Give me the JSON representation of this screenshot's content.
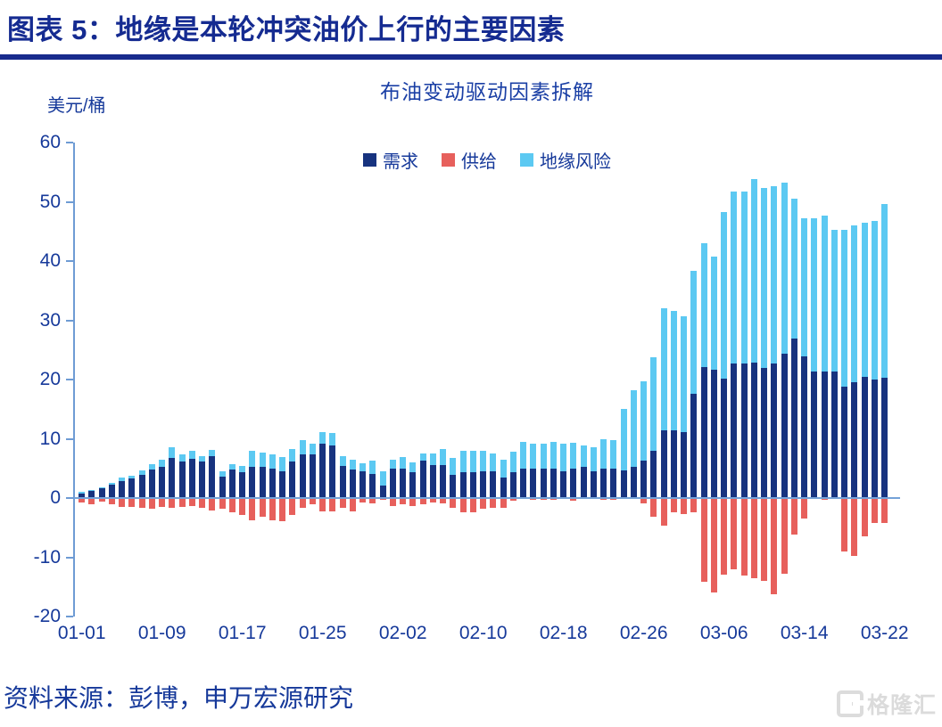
{
  "header": {
    "title": "图表 5：地缘是本轮冲突油价上行的主要因素"
  },
  "footer": {
    "source": "资料来源：彭博，申万宏源研究",
    "logo_text": "格隆汇"
  },
  "colors": {
    "title_text": "#152B91",
    "rule": "#182B8D",
    "axis_text": "#16399A",
    "axis_line": "#6E9BD4",
    "demand": "#17337F",
    "supply": "#E7605C",
    "geo": "#5CC9F2"
  },
  "chart_data": {
    "type": "bar",
    "stacked": true,
    "title": "布油变动驱动因素拆解",
    "ylabel": "美元/桶",
    "xlabel": "",
    "ylim": [
      -20,
      60
    ],
    "ytick_interval": 10,
    "ytick_labels": [
      "60",
      "50",
      "40",
      "30",
      "20",
      "10",
      "0",
      "-10",
      "-20"
    ],
    "grid": false,
    "legend_position": "top-center",
    "x_tick_labels": [
      "01-01",
      "01-09",
      "01-17",
      "01-25",
      "02-02",
      "02-10",
      "02-18",
      "02-26",
      "03-06",
      "03-14",
      "03-22"
    ],
    "x_tick_indices": [
      0,
      8,
      16,
      24,
      32,
      40,
      48,
      56,
      64,
      72,
      80
    ],
    "dates": [
      "01-01",
      "01-02",
      "01-03",
      "01-04",
      "01-05",
      "01-06",
      "01-07",
      "01-08",
      "01-09",
      "01-10",
      "01-11",
      "01-12",
      "01-13",
      "01-14",
      "01-15",
      "01-16",
      "01-17",
      "01-18",
      "01-19",
      "01-20",
      "01-21",
      "01-22",
      "01-23",
      "01-24",
      "01-25",
      "01-26",
      "01-27",
      "01-28",
      "01-29",
      "01-30",
      "01-31",
      "02-01",
      "02-02",
      "02-03",
      "02-04",
      "02-05",
      "02-06",
      "02-07",
      "02-08",
      "02-09",
      "02-10",
      "02-11",
      "02-12",
      "02-13",
      "02-14",
      "02-15",
      "02-16",
      "02-17",
      "02-18",
      "02-19",
      "02-20",
      "02-21",
      "02-22",
      "02-23",
      "02-24",
      "02-25",
      "02-26",
      "02-27",
      "02-28",
      "03-01",
      "03-02",
      "03-03",
      "03-04",
      "03-05",
      "03-06",
      "03-07",
      "03-08",
      "03-09",
      "03-10",
      "03-11",
      "03-12",
      "03-13",
      "03-14",
      "03-15",
      "03-16",
      "03-17",
      "03-18",
      "03-19",
      "03-20",
      "03-21",
      "03-22"
    ],
    "series": [
      {
        "name": "需求",
        "color": "#17337F",
        "values": [
          0.8,
          1.2,
          1.6,
          2.2,
          2.9,
          3.3,
          3.9,
          4.8,
          5.3,
          6.8,
          6.2,
          6.6,
          6.1,
          7.0,
          3.6,
          4.8,
          4.4,
          5.2,
          5.2,
          4.9,
          4.5,
          6.2,
          7.3,
          7.4,
          9.2,
          8.9,
          5.4,
          4.8,
          4.5,
          4.0,
          2.1,
          4.9,
          4.9,
          4.4,
          6.3,
          5.5,
          5.5,
          3.9,
          4.3,
          4.3,
          4.5,
          4.5,
          3.4,
          4.4,
          4.9,
          4.9,
          5.0,
          5.0,
          4.5,
          4.9,
          5.3,
          4.5,
          4.9,
          5.0,
          4.7,
          5.2,
          6.3,
          7.9,
          11.5,
          11.5,
          11.2,
          17.6,
          22.1,
          21.6,
          20.2,
          22.7,
          22.7,
          22.8,
          21.9,
          22.7,
          24.4,
          26.9,
          23.9,
          21.3,
          21.4,
          21.3,
          18.8,
          19.5,
          20.4,
          20.0,
          20.3
        ]
      },
      {
        "name": "供给",
        "color": "#E7605C",
        "values": [
          -0.7,
          -1.0,
          -0.6,
          -1.1,
          -1.5,
          -1.5,
          -1.6,
          -1.8,
          -1.5,
          -1.7,
          -1.5,
          -1.3,
          -1.7,
          -2.1,
          -1.8,
          -2.4,
          -2.9,
          -3.8,
          -3.1,
          -3.8,
          -3.9,
          -2.8,
          -1.7,
          -1.1,
          -2.2,
          -2.2,
          -1.7,
          -2.2,
          -0.8,
          -0.9,
          -0.3,
          -1.3,
          -1.1,
          -1.4,
          -1.1,
          -0.8,
          -0.9,
          -1.7,
          -2.4,
          -2.4,
          -1.8,
          -1.7,
          -1.7,
          -0.4,
          -0.2,
          -0.3,
          -0.3,
          -0.3,
          -0.2,
          -0.4,
          -0.2,
          -0.2,
          -0.3,
          -0.3,
          -0.1,
          -0.2,
          -0.9,
          -3.2,
          -4.6,
          -2.4,
          -2.7,
          -2.4,
          -14.1,
          -15.9,
          -12.9,
          -12.0,
          -13.1,
          -13.5,
          -14.0,
          -16.3,
          -12.8,
          -6.2,
          -3.5,
          0,
          -0.3,
          0,
          -9.0,
          -9.7,
          -6.4,
          -4.2,
          -4.2
        ]
      },
      {
        "name": "地缘风险",
        "color": "#5CC9F2",
        "values": [
          0.2,
          0.2,
          0.2,
          0.4,
          0.5,
          0.4,
          0.7,
          0.9,
          1.1,
          1.7,
          1.1,
          1.3,
          1.0,
          1.1,
          0.9,
          0.9,
          1.0,
          2.8,
          2.5,
          2.4,
          2.4,
          2.0,
          2.5,
          1.8,
          1.9,
          2.1,
          1.6,
          1.7,
          1.4,
          2.3,
          2.4,
          1.5,
          2.0,
          1.6,
          1.2,
          2.0,
          2.7,
          2.9,
          3.6,
          3.6,
          3.4,
          3.0,
          3.0,
          3.4,
          4.6,
          4.3,
          4.1,
          4.4,
          4.6,
          4.4,
          3.6,
          4.0,
          5.0,
          4.8,
          10.3,
          13.0,
          13.4,
          15.8,
          20.5,
          20.1,
          19.5,
          20.7,
          20.9,
          19.2,
          28.0,
          29.1,
          29.1,
          31.0,
          30.5,
          29.9,
          28.9,
          23.7,
          23.3,
          25.9,
          26.2,
          24.0,
          26.4,
          26.5,
          26.0,
          26.7,
          29.3
        ]
      }
    ]
  }
}
